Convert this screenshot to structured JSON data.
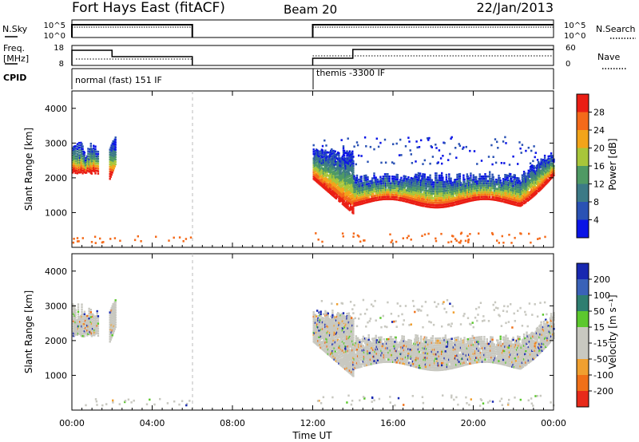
{
  "header": {
    "title": "Fort Hays East (fitACF)",
    "beam": "Beam 20",
    "date": "22/Jan/2013"
  },
  "noise_panel": {
    "left_label": "N.Sky",
    "right_label": "N.Search",
    "left_ticks": [
      "10^5",
      "10^0"
    ],
    "right_ticks": [
      "10^5",
      "10^0"
    ]
  },
  "freq_panel": {
    "left_label_line1": "Freq.",
    "left_label_line2": "[MHz]",
    "right_label": "Nave",
    "left_ticks": [
      "18",
      "8"
    ],
    "right_ticks": [
      "60",
      "0"
    ]
  },
  "cpid_panel": {
    "label": "CPID",
    "segments": [
      {
        "text": "normal (fast) 151 IF",
        "start_hour": 0
      },
      {
        "text": "themis -3300 IF",
        "start_hour": 12
      }
    ]
  },
  "chart_data": [
    {
      "type": "heatmap",
      "name": "power",
      "ylabel": "Slant Range [km]",
      "yticks": [
        1000,
        2000,
        3000,
        4000
      ],
      "ylim": [
        0,
        4500
      ],
      "xlim": [
        0,
        24
      ],
      "colorbar": {
        "label": "Power [dB]",
        "ticks": [
          "4",
          "8",
          "12",
          "16",
          "20",
          "24",
          "28"
        ],
        "colors": [
          "#0a14e6",
          "#2a52b4",
          "#3c7a86",
          "#4f9a64",
          "#a8c63a",
          "#f2a41a",
          "#f46a1a",
          "#ea1e14"
        ]
      }
    },
    {
      "type": "heatmap",
      "name": "velocity",
      "ylabel": "Slant Range [km]",
      "yticks": [
        1000,
        2000,
        3000,
        4000
      ],
      "ylim": [
        0,
        4500
      ],
      "xlim": [
        0,
        24
      ],
      "colorbar": {
        "label": "Velocity [m s⁻¹]",
        "ticks": [
          "200",
          "100",
          "50",
          "15",
          "-15",
          "-50",
          "-100",
          "-200"
        ],
        "colors": [
          "#1828b0",
          "#3a62b8",
          "#2e7e70",
          "#5cc82e",
          "#c8c8c0",
          "#c8c8c0",
          "#f0a030",
          "#f07018",
          "#e82a1a"
        ]
      }
    }
  ],
  "x_axis": {
    "label": "Time UT",
    "ticks": [
      "00:00",
      "04:00",
      "08:00",
      "12:00",
      "16:00",
      "20:00",
      "00:00"
    ]
  }
}
